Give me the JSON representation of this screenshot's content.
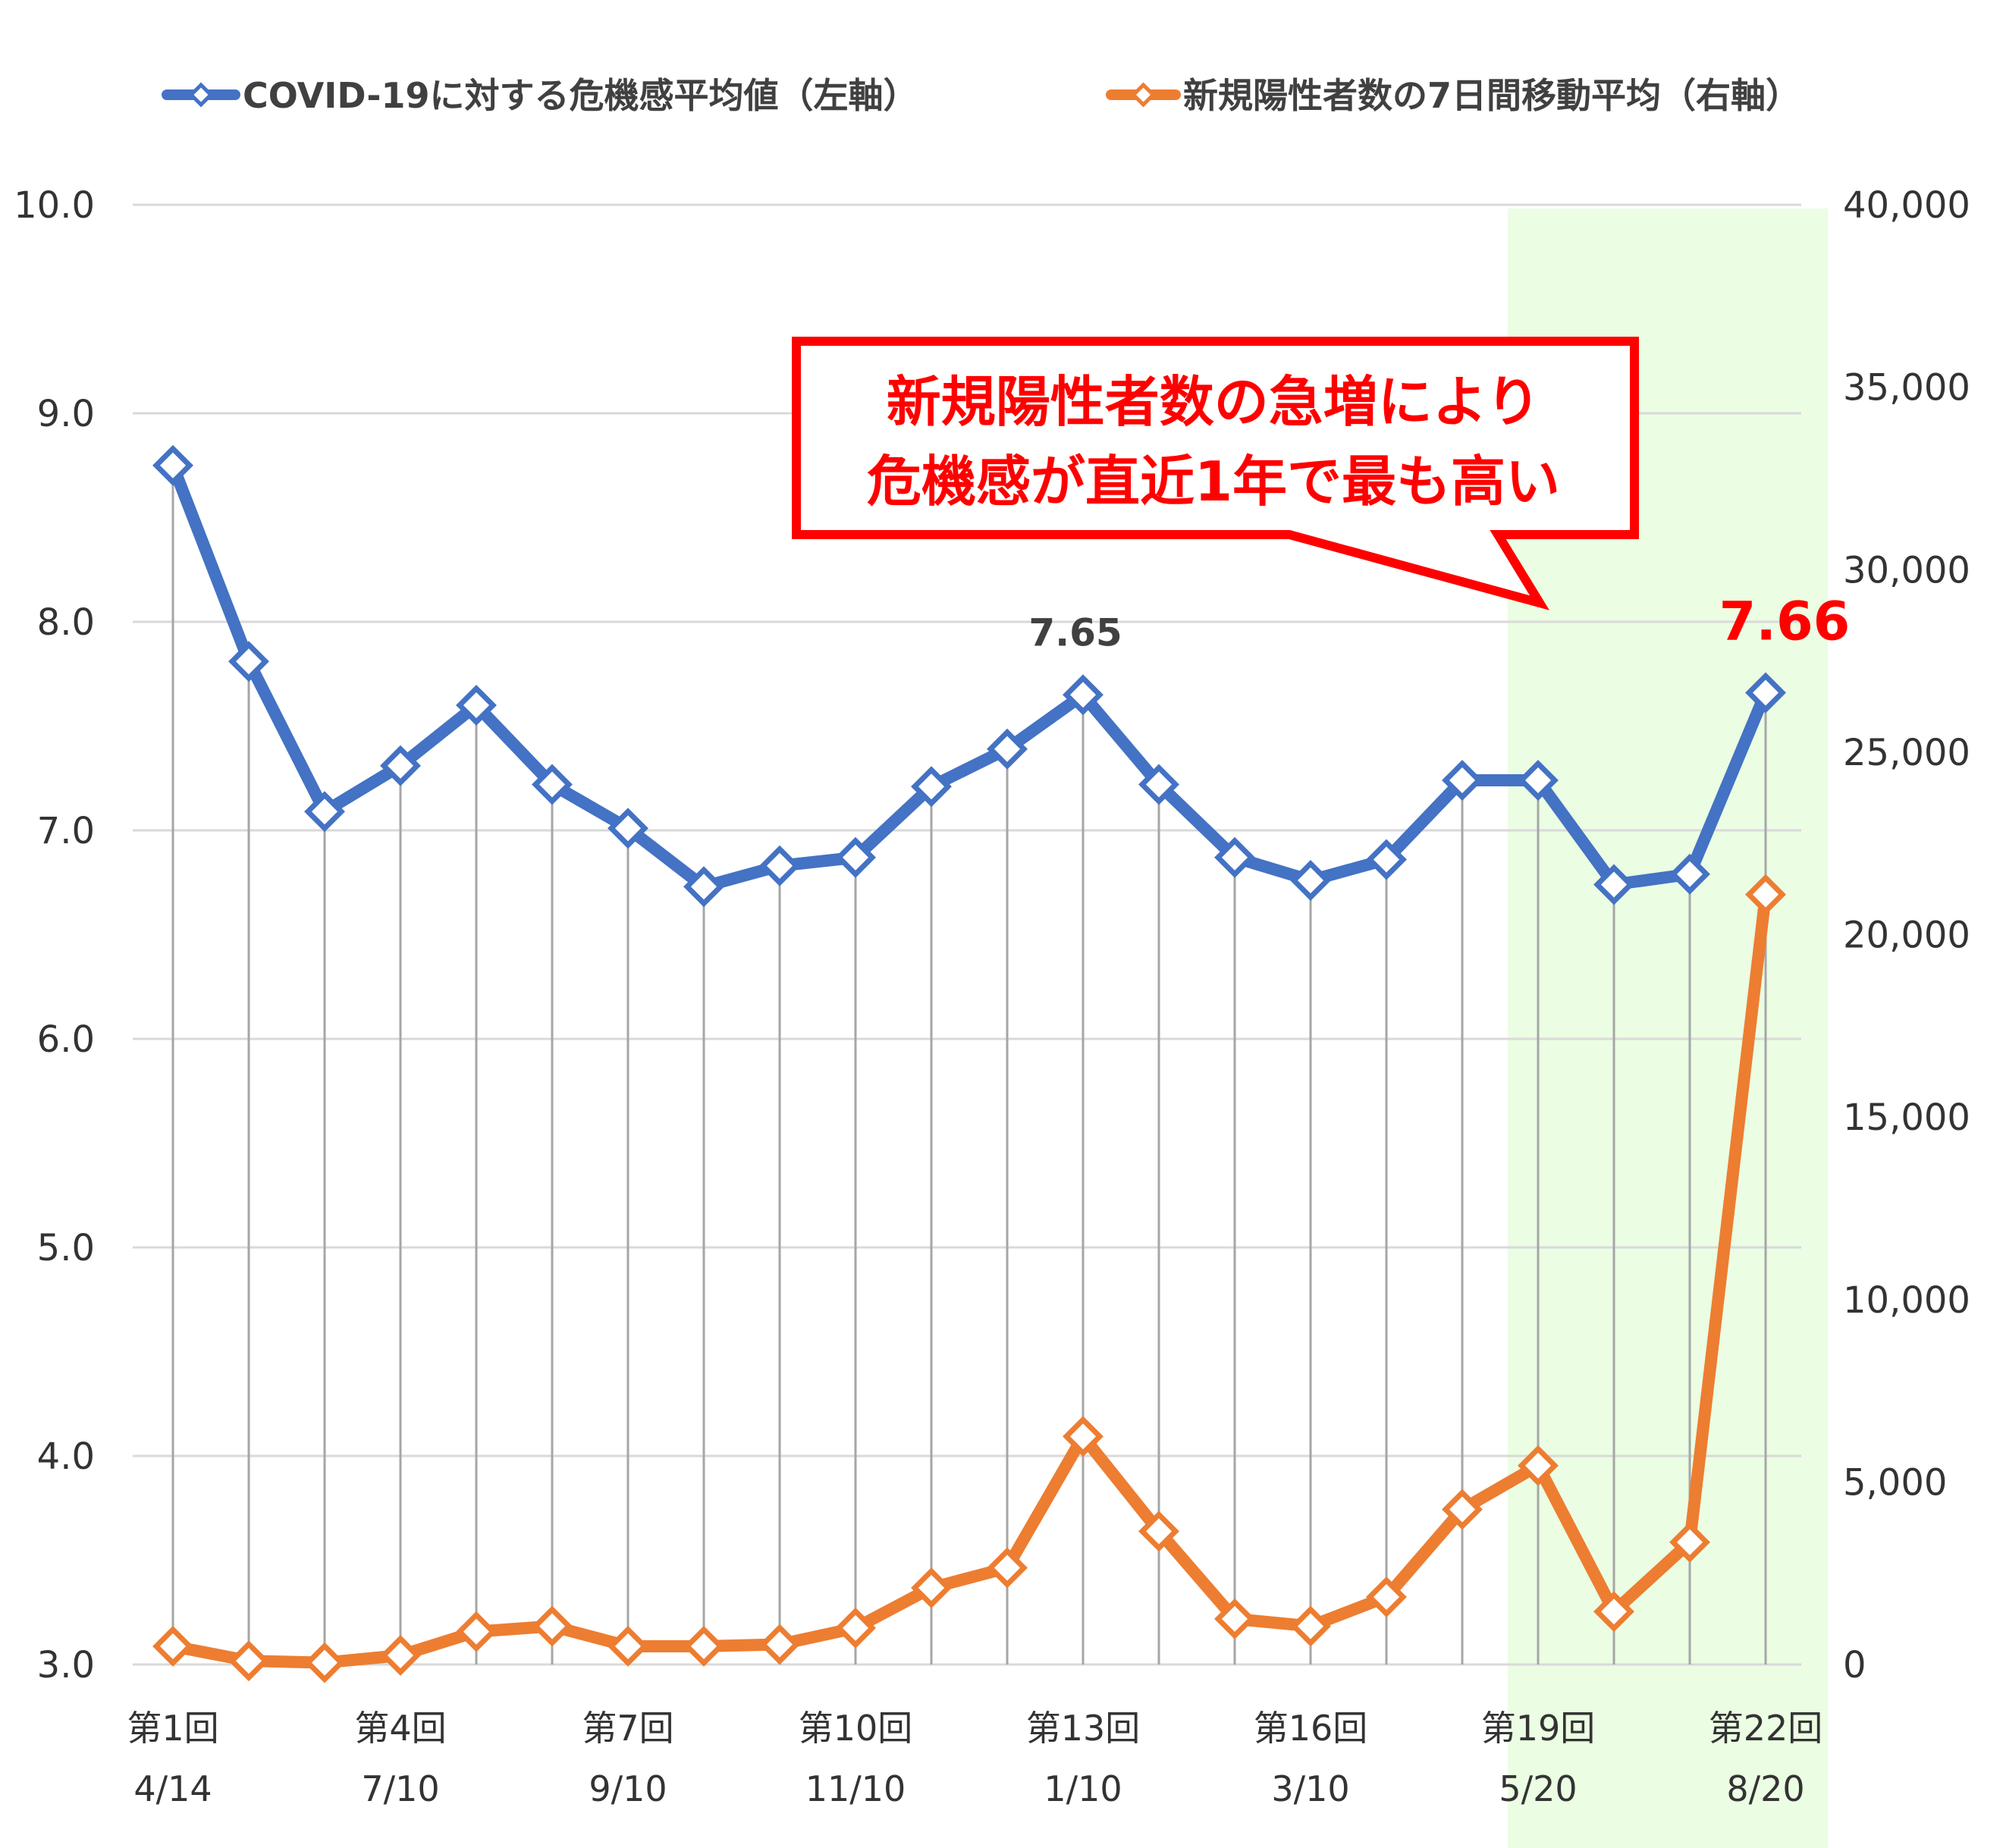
{
  "chart_data": {
    "type": "line",
    "categories": [
      "第1回",
      "",
      "",
      "第4回",
      "",
      "",
      "第7回",
      "",
      "",
      "第10回",
      "",
      "",
      "第13回",
      "",
      "",
      "第16回",
      "",
      "",
      "第19回",
      "",
      "",
      "第22回"
    ],
    "x_tick_labels": [
      {
        "index": 0,
        "label": "第1回",
        "date": "4/14"
      },
      {
        "index": 3,
        "label": "第4回",
        "date": "7/10"
      },
      {
        "index": 6,
        "label": "第7回",
        "date": "9/10"
      },
      {
        "index": 9,
        "label": "第10回",
        "date": "11/10"
      },
      {
        "index": 12,
        "label": "第13回",
        "date": "1/10"
      },
      {
        "index": 15,
        "label": "第16回",
        "date": "3/10"
      },
      {
        "index": 18,
        "label": "第19回",
        "date": "5/20"
      },
      {
        "index": 21,
        "label": "第22回",
        "date": "8/20"
      }
    ],
    "series": [
      {
        "name": "COVID-19に対する危機感平均値（左軸）",
        "axis": "left",
        "color": "#4472c4",
        "values": [
          8.75,
          7.81,
          7.09,
          7.31,
          7.6,
          7.22,
          7.01,
          6.73,
          6.83,
          6.87,
          7.21,
          7.39,
          7.65,
          7.22,
          6.87,
          6.76,
          6.86,
          7.24,
          7.24,
          6.74,
          6.79,
          7.66
        ]
      },
      {
        "name": "新規陽性者数の7日間移動平均（右軸）",
        "axis": "right",
        "color": "#ed7d31",
        "values": [
          500,
          100,
          50,
          250,
          900,
          1050,
          500,
          500,
          550,
          1000,
          2100,
          2650,
          6250,
          3650,
          1250,
          1050,
          1850,
          4250,
          5450,
          1450,
          3350,
          21100
        ]
      }
    ],
    "y_left": {
      "min": 3.0,
      "max": 10.0,
      "ticks": [
        "3.0",
        "4.0",
        "5.0",
        "6.0",
        "7.0",
        "8.0",
        "9.0",
        "10.0"
      ]
    },
    "y_right": {
      "min": 0,
      "max": 40000,
      "ticks": [
        "0",
        "5,000",
        "10,000",
        "15,000",
        "20,000",
        "25,000",
        "30,000",
        "35,000",
        "40,000"
      ]
    },
    "grid": true,
    "legend_position": "top",
    "highlight_region": {
      "from_index": 17.6,
      "to_index": 22,
      "color": "#ebfde3"
    },
    "annotations": [
      {
        "text": "7.65",
        "index": 12,
        "series": 0,
        "color": "#404040"
      },
      {
        "text": "7.66",
        "index": 21,
        "series": 0,
        "color": "#ff0000"
      }
    ],
    "callout": {
      "lines": [
        "新規陽性者数の急増により",
        "危機感が直近1年で最も高い"
      ],
      "border_color": "#ff0000",
      "text_color": "#ff0000"
    }
  }
}
